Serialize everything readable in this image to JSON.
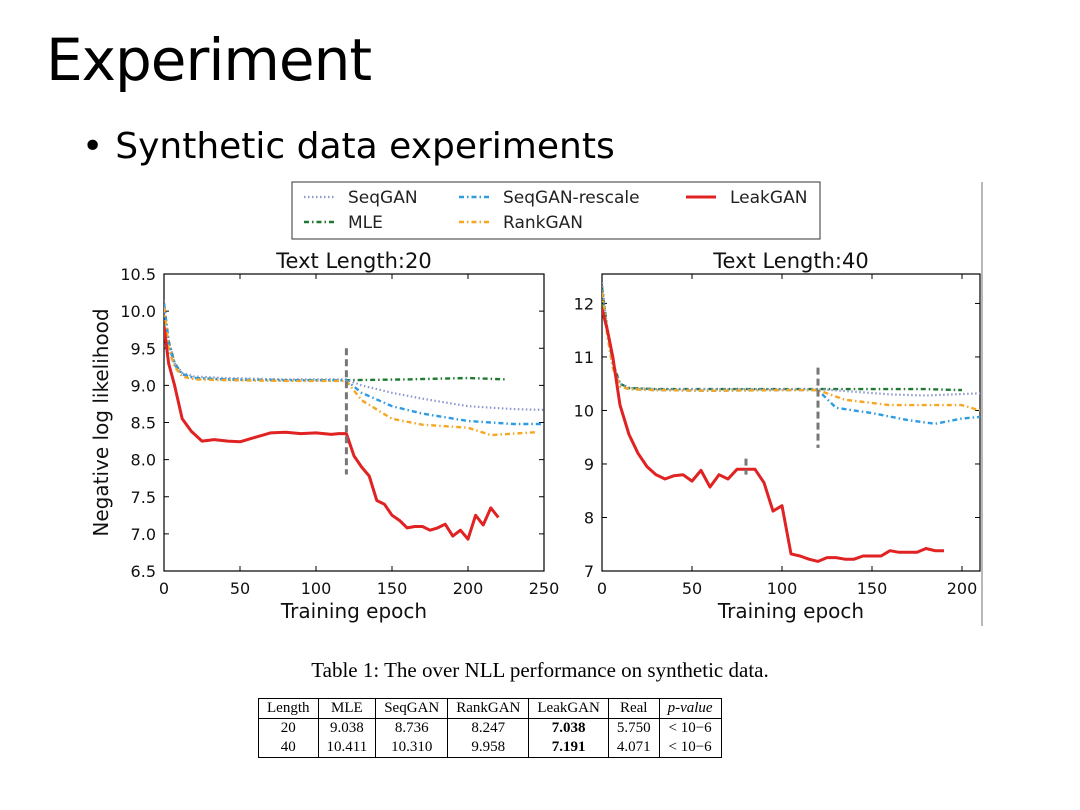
{
  "slide": {
    "title": "Experiment",
    "bullet": "Synthetic data experiments"
  },
  "legend": [
    {
      "name": "SeqGAN",
      "color": "#8a97cf",
      "style": "dotted"
    },
    {
      "name": "SeqGAN-rescale",
      "color": "#2e9be3",
      "style": "dashdot"
    },
    {
      "name": "LeakGAN",
      "color": "#e02222",
      "style": "solid"
    },
    {
      "name": "MLE",
      "color": "#1e7a2e",
      "style": "dashdot"
    },
    {
      "name": "RankGAN",
      "color": "#f5a623",
      "style": "dashdot"
    }
  ],
  "chart_data": [
    {
      "type": "line",
      "title": "Text Length:20",
      "xlabel": "Training epoch",
      "ylabel": "Negative log likelihood",
      "xlim": [
        0,
        250
      ],
      "ylim": [
        6.5,
        10.5
      ],
      "xticks": [
        0,
        50,
        100,
        150,
        200,
        250
      ],
      "yticks": [
        6.5,
        7.0,
        7.5,
        8.0,
        8.5,
        9.0,
        9.5,
        10.0,
        10.5
      ],
      "ytick_labels": [
        "6.5",
        "7.0",
        "7.5",
        "8.0",
        "8.5",
        "9.0",
        "9.5",
        "10.0",
        "10.5"
      ],
      "vline": {
        "x": 120,
        "y_range": [
          7.8,
          9.5
        ]
      },
      "series": [
        {
          "name": "MLE",
          "x": [
            0,
            3,
            7,
            12,
            20,
            40,
            80,
            120,
            160,
            200,
            225
          ],
          "y": [
            10.1,
            9.6,
            9.3,
            9.15,
            9.1,
            9.08,
            9.07,
            9.07,
            9.08,
            9.1,
            9.08
          ]
        },
        {
          "name": "SeqGAN",
          "x": [
            0,
            3,
            7,
            12,
            20,
            40,
            80,
            120,
            130,
            150,
            170,
            200,
            230,
            250
          ],
          "y": [
            10.15,
            9.6,
            9.3,
            9.17,
            9.12,
            9.1,
            9.08,
            9.08,
            9.0,
            8.9,
            8.82,
            8.72,
            8.68,
            8.67
          ]
        },
        {
          "name": "SeqGAN-rescale",
          "x": [
            0,
            3,
            7,
            12,
            20,
            40,
            80,
            120,
            130,
            150,
            170,
            200,
            230,
            250
          ],
          "y": [
            10.1,
            9.55,
            9.28,
            9.15,
            9.1,
            9.08,
            9.07,
            9.07,
            8.9,
            8.72,
            8.62,
            8.52,
            8.48,
            8.48
          ]
        },
        {
          "name": "RankGAN",
          "x": [
            0,
            3,
            7,
            12,
            20,
            40,
            80,
            120,
            130,
            150,
            170,
            200,
            215,
            230,
            245
          ],
          "y": [
            10.05,
            9.5,
            9.25,
            9.12,
            9.08,
            9.07,
            9.06,
            9.06,
            8.8,
            8.55,
            8.47,
            8.43,
            8.33,
            8.35,
            8.37
          ]
        },
        {
          "name": "LeakGAN",
          "x": [
            0,
            3,
            7,
            12,
            18,
            25,
            33,
            42,
            50,
            60,
            70,
            80,
            90,
            100,
            110,
            115,
            120,
            125,
            130,
            135,
            140,
            145,
            150,
            155,
            160,
            165,
            170,
            175,
            180,
            185,
            190,
            195,
            200,
            205,
            210,
            215,
            220
          ],
          "y": [
            9.8,
            9.3,
            9.0,
            8.55,
            8.38,
            8.25,
            8.27,
            8.25,
            8.24,
            8.3,
            8.36,
            8.37,
            8.35,
            8.36,
            8.34,
            8.35,
            8.35,
            8.05,
            7.9,
            7.78,
            7.45,
            7.4,
            7.25,
            7.18,
            7.08,
            7.1,
            7.1,
            7.05,
            7.08,
            7.13,
            6.97,
            7.05,
            6.93,
            7.25,
            7.12,
            7.35,
            7.22
          ]
        }
      ]
    },
    {
      "type": "line",
      "title": "Text Length:40",
      "xlabel": "Training epoch",
      "ylabel": "",
      "xlim": [
        0,
        210
      ],
      "ylim": [
        7,
        12.55
      ],
      "xticks": [
        0,
        50,
        100,
        150,
        200
      ],
      "yticks": [
        7,
        8,
        9,
        10,
        11,
        12
      ],
      "ytick_labels": [
        "7",
        "8",
        "9",
        "10",
        "11",
        "12"
      ],
      "vline": {
        "x": 120,
        "y_range": [
          9.3,
          10.8
        ]
      },
      "vline2": {
        "x": 80,
        "y_range": [
          8.8,
          9.1
        ]
      },
      "series": [
        {
          "name": "MLE",
          "x": [
            0,
            3,
            6,
            10,
            15,
            30,
            60,
            100,
            120,
            150,
            180,
            200
          ],
          "y": [
            12.3,
            11.5,
            10.9,
            10.5,
            10.42,
            10.4,
            10.4,
            10.4,
            10.4,
            10.4,
            10.4,
            10.38
          ]
        },
        {
          "name": "SeqGAN",
          "x": [
            0,
            3,
            6,
            10,
            15,
            30,
            60,
            100,
            120,
            140,
            160,
            180,
            210
          ],
          "y": [
            12.4,
            11.5,
            10.9,
            10.5,
            10.42,
            10.4,
            10.4,
            10.4,
            10.4,
            10.35,
            10.3,
            10.28,
            10.32
          ]
        },
        {
          "name": "SeqGAN-rescale",
          "x": [
            0,
            3,
            6,
            10,
            15,
            30,
            60,
            100,
            120,
            130,
            150,
            170,
            185,
            200,
            210
          ],
          "y": [
            12.2,
            11.4,
            10.8,
            10.45,
            10.4,
            10.38,
            10.37,
            10.38,
            10.38,
            10.05,
            9.95,
            9.82,
            9.75,
            9.85,
            9.88
          ]
        },
        {
          "name": "RankGAN",
          "x": [
            0,
            3,
            6,
            10,
            15,
            30,
            60,
            100,
            120,
            135,
            160,
            185,
            200,
            210
          ],
          "y": [
            12.2,
            11.4,
            10.8,
            10.45,
            10.4,
            10.38,
            10.37,
            10.38,
            10.38,
            10.2,
            10.1,
            10.1,
            10.1,
            10.0
          ]
        },
        {
          "name": "LeakGAN",
          "x": [
            0,
            3,
            6,
            10,
            15,
            20,
            25,
            30,
            35,
            40,
            45,
            50,
            55,
            60,
            65,
            70,
            75,
            80,
            85,
            90,
            95,
            100,
            105,
            110,
            115,
            120,
            125,
            130,
            135,
            140,
            145,
            150,
            155,
            160,
            165,
            170,
            175,
            180,
            185,
            190
          ],
          "y": [
            11.9,
            11.5,
            11.0,
            10.1,
            9.55,
            9.2,
            8.95,
            8.8,
            8.72,
            8.78,
            8.8,
            8.68,
            8.88,
            8.57,
            8.8,
            8.72,
            8.9,
            8.9,
            8.9,
            8.65,
            8.12,
            8.22,
            7.32,
            7.28,
            7.22,
            7.18,
            7.25,
            7.25,
            7.22,
            7.22,
            7.28,
            7.28,
            7.28,
            7.38,
            7.35,
            7.35,
            7.35,
            7.42,
            7.38,
            7.38
          ]
        }
      ]
    }
  ],
  "table": {
    "caption": "Table 1: The over NLL performance on synthetic data.",
    "headers": [
      "Length",
      "MLE",
      "SeqGAN",
      "RankGAN",
      "LeakGAN",
      "Real",
      "p-value"
    ],
    "rows": [
      [
        "20",
        "9.038",
        "8.736",
        "8.247",
        "7.038",
        "5.750",
        "< 10−6"
      ],
      [
        "40",
        "10.411",
        "10.310",
        "9.958",
        "7.191",
        "4.071",
        "< 10−6"
      ]
    ]
  }
}
